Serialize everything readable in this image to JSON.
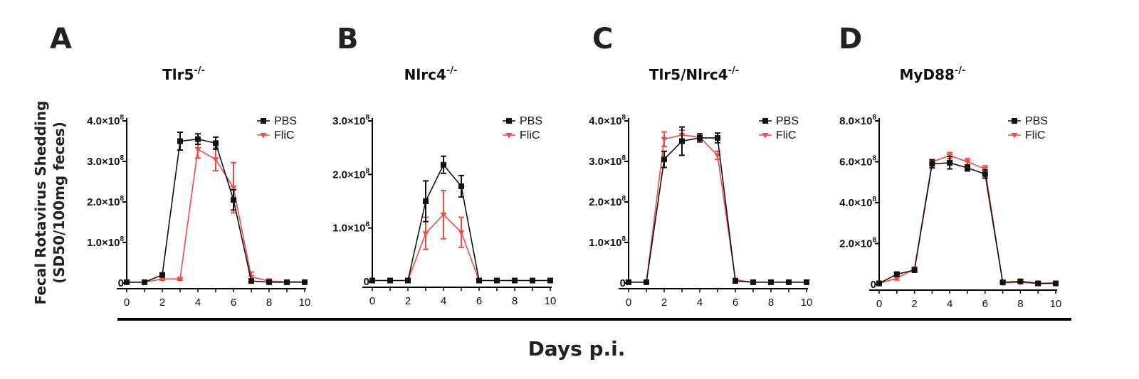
{
  "figure": {
    "ylabel_line1": "Fecal Rotavirus Shedding",
    "ylabel_line2": "(SD50/100mg feces)",
    "xlabel": "Days p.i.",
    "colors": {
      "PBS": "#111111",
      "FliC": "#f04b46"
    }
  },
  "chart_data": [
    {
      "type": "line",
      "panel": "A",
      "title": "Tlr5",
      "title_sup": "-/-",
      "xlabel": "Days p.i.",
      "ylabel": "Fecal Rotavirus Shedding (SD50/100mg feces)",
      "x": [
        0,
        1,
        2,
        3,
        4,
        5,
        6,
        7,
        8,
        9,
        10
      ],
      "xticks": [
        "0",
        "2",
        "4",
        "6",
        "8",
        "10"
      ],
      "xlim": [
        0,
        10
      ],
      "ylim": [
        0,
        4.0
      ],
      "yunit": "x10^8",
      "yticks": [
        {
          "v": 0,
          "label": "0",
          "sup": ""
        },
        {
          "v": 1.0,
          "label": "1.0×10",
          "sup": "8"
        },
        {
          "v": 2.0,
          "label": "2.0×10",
          "sup": "8"
        },
        {
          "v": 3.0,
          "label": "3.0×10",
          "sup": "8"
        },
        {
          "v": 4.0,
          "label": "4.0×10",
          "sup": "8"
        }
      ],
      "legend": [
        "PBS",
        "FliC"
      ],
      "series": [
        {
          "name": "PBS",
          "values": [
            0.02,
            0.02,
            0.2,
            3.5,
            3.55,
            3.45,
            2.05,
            0.05,
            0.02,
            0.02,
            0.02
          ],
          "errors": [
            0.03,
            0.02,
            0.04,
            0.22,
            0.13,
            0.15,
            0.25,
            0.04,
            0.02,
            0.02,
            0.02
          ]
        },
        {
          "name": "FliC",
          "values": [
            0.02,
            0.02,
            0.1,
            0.1,
            3.3,
            3.05,
            2.35,
            0.15,
            0.05,
            0.03,
            0.03
          ],
          "errors": [
            0.02,
            0.02,
            0.03,
            0.03,
            0.22,
            0.28,
            0.62,
            0.12,
            0.05,
            0.03,
            0.03
          ]
        }
      ]
    },
    {
      "type": "line",
      "panel": "B",
      "title": "Nlrc4",
      "title_sup": "-/-",
      "x": [
        0,
        1,
        2,
        3,
        4,
        5,
        6,
        7,
        8,
        9,
        10
      ],
      "xticks": [
        "0",
        "2",
        "4",
        "6",
        "8",
        "10"
      ],
      "xlim": [
        0,
        10
      ],
      "ylim": [
        0,
        3.0
      ],
      "yunit": "x10^8",
      "yticks": [
        {
          "v": 0,
          "label": "0",
          "sup": ""
        },
        {
          "v": 1.0,
          "label": "1.0×10",
          "sup": "8"
        },
        {
          "v": 2.0,
          "label": "2.0×10",
          "sup": "8"
        },
        {
          "v": 3.0,
          "label": "3.0×10",
          "sup": "8"
        }
      ],
      "legend": [
        "PBS",
        "FliC"
      ],
      "series": [
        {
          "name": "PBS",
          "values": [
            0.02,
            0.02,
            0.02,
            1.5,
            2.18,
            1.78,
            0.02,
            0.02,
            0.02,
            0.02,
            0.02
          ],
          "errors": [
            0.02,
            0.02,
            0.02,
            0.38,
            0.16,
            0.2,
            0.02,
            0.02,
            0.02,
            0.02,
            0.02
          ]
        },
        {
          "name": "FliC",
          "values": [
            0.02,
            0.02,
            0.02,
            0.9,
            1.25,
            0.92,
            0.02,
            0.02,
            0.02,
            0.02,
            0.02
          ],
          "errors": [
            0.02,
            0.02,
            0.02,
            0.3,
            0.45,
            0.28,
            0.02,
            0.02,
            0.02,
            0.02,
            0.02
          ]
        }
      ]
    },
    {
      "type": "line",
      "panel": "C",
      "title": "Tlr5/Nlrc4",
      "title_sup": "-/-",
      "x": [
        0,
        1,
        2,
        3,
        4,
        5,
        6,
        7,
        8,
        9,
        10
      ],
      "xticks": [
        "0",
        "2",
        "4",
        "6",
        "8",
        "10"
      ],
      "xlim": [
        0,
        10
      ],
      "ylim": [
        0,
        4.0
      ],
      "yunit": "x10^8",
      "yticks": [
        {
          "v": 0,
          "label": "0",
          "sup": ""
        },
        {
          "v": 1.0,
          "label": "1.0×10",
          "sup": "8"
        },
        {
          "v": 2.0,
          "label": "2.0×10",
          "sup": "8"
        },
        {
          "v": 3.0,
          "label": "3.0×10",
          "sup": "8"
        },
        {
          "v": 4.0,
          "label": "4.0×10",
          "sup": "8"
        }
      ],
      "legend": [
        "PBS",
        "FliC"
      ],
      "series": [
        {
          "name": "PBS",
          "values": [
            0.02,
            0.02,
            3.05,
            3.5,
            3.58,
            3.58,
            0.05,
            0.02,
            0.02,
            0.02,
            0.02
          ],
          "errors": [
            0.02,
            0.02,
            0.2,
            0.35,
            0.1,
            0.12,
            0.02,
            0.02,
            0.02,
            0.02,
            0.02
          ]
        },
        {
          "name": "FliC",
          "values": [
            0.02,
            0.02,
            3.55,
            3.65,
            3.6,
            3.15,
            0.08,
            0.02,
            0.02,
            0.02,
            0.02
          ],
          "errors": [
            0.02,
            0.02,
            0.18,
            0.12,
            0.08,
            0.1,
            0.03,
            0.02,
            0.02,
            0.02,
            0.02
          ]
        }
      ]
    },
    {
      "type": "line",
      "panel": "D",
      "title": "MyD88",
      "title_sup": "-/-",
      "x": [
        0,
        1,
        2,
        3,
        4,
        5,
        6,
        7,
        8,
        9,
        10
      ],
      "xticks": [
        "0",
        "2",
        "4",
        "6",
        "8",
        "10"
      ],
      "xlim": [
        0,
        10
      ],
      "ylim": [
        0,
        8.0
      ],
      "yunit": "x10^8",
      "yticks": [
        {
          "v": 0,
          "label": "0",
          "sup": ""
        },
        {
          "v": 2.0,
          "label": "2.0×10",
          "sup": "8"
        },
        {
          "v": 4.0,
          "label": "4.0×10",
          "sup": "8"
        },
        {
          "v": 6.0,
          "label": "6.0×10",
          "sup": "8"
        },
        {
          "v": 8.0,
          "label": "8.0×10",
          "sup": "8"
        }
      ],
      "legend": [
        "PBS",
        "FliC"
      ],
      "series": [
        {
          "name": "PBS",
          "values": [
            0.05,
            0.5,
            0.7,
            5.9,
            5.95,
            5.7,
            5.4,
            0.1,
            0.15,
            0.05,
            0.05
          ],
          "errors": [
            0.05,
            0.1,
            0.1,
            0.2,
            0.3,
            0.15,
            0.2,
            0.05,
            0.08,
            0.04,
            0.04
          ]
        },
        {
          "name": "FliC",
          "values": [
            0.05,
            0.3,
            0.75,
            6.0,
            6.3,
            6.0,
            5.65,
            0.08,
            0.1,
            0.05,
            0.08
          ],
          "errors": [
            0.05,
            0.08,
            0.1,
            0.1,
            0.15,
            0.15,
            0.15,
            0.04,
            0.05,
            0.04,
            0.04
          ]
        }
      ]
    }
  ]
}
